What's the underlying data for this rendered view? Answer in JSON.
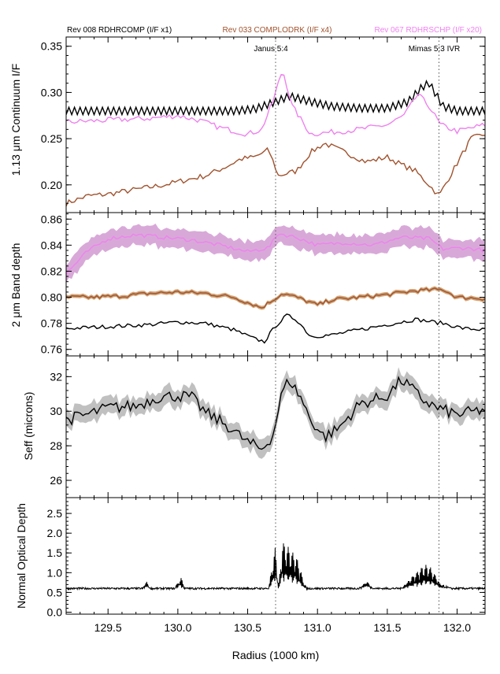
{
  "legend": [
    {
      "label": "Rev 008 RDHRCOMP (I/F x1)",
      "color": "#000000"
    },
    {
      "label": "Rev 033 COMPLODRK (I/F x4)",
      "color": "#a0522d"
    },
    {
      "label": "Rev 067 RDHRSCHP (I/F x20)",
      "color": "#ee82ee"
    }
  ],
  "resonances": [
    {
      "label": "Janus 5:4",
      "x": 130.7
    },
    {
      "label": "Mimas 5:3 IVR",
      "x": 131.87
    }
  ],
  "colors": {
    "band": "#c0c0c0",
    "brown_band": "#d2a679",
    "violet_band": "#d8a9d8",
    "dotted": "#555555"
  },
  "chart_data": [
    {
      "type": "line",
      "ylabel": "1.13 μm Continuum I/F",
      "xlim": [
        129.2,
        132.2
      ],
      "ylim": [
        0.17,
        0.36
      ],
      "yticks": [
        "0.20",
        "0.25",
        "0.30",
        "0.35"
      ],
      "series": [
        {
          "name": "Rev 008 RDHRCOMP (I/F x1)",
          "color": "#000000",
          "x": [
            129.2,
            129.4,
            129.6,
            129.8,
            130.0,
            130.2,
            130.4,
            130.55,
            130.7,
            130.8,
            130.95,
            131.1,
            131.3,
            131.5,
            131.65,
            131.75,
            131.8,
            131.9,
            132.0,
            132.2
          ],
          "y": [
            0.28,
            0.28,
            0.28,
            0.28,
            0.28,
            0.28,
            0.28,
            0.282,
            0.29,
            0.296,
            0.29,
            0.285,
            0.283,
            0.283,
            0.29,
            0.306,
            0.31,
            0.285,
            0.28,
            0.28
          ]
        },
        {
          "name": "Rev 033 COMPLODRK (I/F x4)",
          "color": "#a0522d",
          "x": [
            129.2,
            129.35,
            129.5,
            129.7,
            129.9,
            130.05,
            130.2,
            130.35,
            130.45,
            130.55,
            130.65,
            130.72,
            130.85,
            130.95,
            131.05,
            131.2,
            131.35,
            131.5,
            131.6,
            131.7,
            131.8,
            131.87,
            131.95,
            132.1,
            132.2
          ],
          "y": [
            0.18,
            0.188,
            0.19,
            0.195,
            0.2,
            0.205,
            0.21,
            0.22,
            0.228,
            0.23,
            0.238,
            0.21,
            0.215,
            0.235,
            0.245,
            0.235,
            0.225,
            0.23,
            0.222,
            0.215,
            0.2,
            0.188,
            0.21,
            0.25,
            0.255
          ]
        },
        {
          "name": "Rev 067 RDHRSCHP (I/F x20)",
          "color": "#ee82ee",
          "x": [
            129.2,
            129.5,
            129.8,
            130.0,
            130.15,
            130.3,
            130.5,
            130.6,
            130.68,
            130.75,
            130.82,
            130.95,
            131.1,
            131.3,
            131.5,
            131.62,
            131.72,
            131.8,
            131.88,
            132.0,
            132.2
          ],
          "y": [
            0.268,
            0.27,
            0.272,
            0.275,
            0.27,
            0.262,
            0.255,
            0.26,
            0.29,
            0.325,
            0.285,
            0.255,
            0.257,
            0.26,
            0.265,
            0.275,
            0.298,
            0.285,
            0.265,
            0.258,
            0.265
          ]
        }
      ]
    },
    {
      "type": "line",
      "ylabel": "2 μm Band depth",
      "xlim": [
        129.2,
        132.2
      ],
      "ylim": [
        0.755,
        0.865
      ],
      "yticks": [
        "0.76",
        "0.78",
        "0.80",
        "0.82",
        "0.84",
        "0.86"
      ],
      "series": [
        {
          "name": "Rev 008 RDHRCOMP (I/F x1)",
          "color": "#000000",
          "x": [
            129.2,
            129.4,
            129.6,
            129.8,
            130.0,
            130.2,
            130.4,
            130.55,
            130.62,
            130.7,
            130.78,
            130.85,
            130.95,
            131.1,
            131.3,
            131.5,
            131.7,
            131.9,
            132.05,
            132.2
          ],
          "y": [
            0.776,
            0.777,
            0.778,
            0.779,
            0.781,
            0.78,
            0.775,
            0.768,
            0.766,
            0.778,
            0.786,
            0.783,
            0.77,
            0.771,
            0.775,
            0.779,
            0.783,
            0.78,
            0.776,
            0.775
          ]
        },
        {
          "name": "Rev 033 COMPLODRK (I/F x4)",
          "color": "#a0522d",
          "x": [
            129.2,
            129.4,
            129.6,
            129.8,
            130.0,
            130.2,
            130.4,
            130.6,
            130.75,
            130.85,
            131.0,
            131.1,
            131.3,
            131.5,
            131.7,
            131.9,
            132.0,
            132.2
          ],
          "y": [
            0.8,
            0.8,
            0.801,
            0.803,
            0.804,
            0.803,
            0.8,
            0.792,
            0.803,
            0.8,
            0.794,
            0.798,
            0.8,
            0.802,
            0.805,
            0.806,
            0.8,
            0.799
          ]
        },
        {
          "name": "Rev 067 RDHRSCHP (I/F x20)",
          "color": "#ee82ee",
          "x": [
            129.2,
            129.35,
            129.5,
            129.7,
            129.9,
            130.1,
            130.3,
            130.5,
            130.65,
            130.72,
            130.85,
            131.0,
            131.2,
            131.4,
            131.6,
            131.8,
            131.9,
            132.05,
            132.2
          ],
          "y": [
            0.818,
            0.835,
            0.845,
            0.848,
            0.846,
            0.844,
            0.84,
            0.835,
            0.838,
            0.849,
            0.846,
            0.84,
            0.842,
            0.84,
            0.846,
            0.845,
            0.837,
            0.838,
            0.836
          ],
          "spread": 0.008
        }
      ]
    },
    {
      "type": "line",
      "ylabel": "Seff (microns)",
      "xlim": [
        129.2,
        132.2
      ],
      "ylim": [
        25.0,
        33.2
      ],
      "yticks": [
        "26",
        "28",
        "30",
        "32"
      ],
      "series": [
        {
          "color": "#000000",
          "x": [
            129.2,
            129.35,
            129.5,
            129.7,
            129.85,
            130.0,
            130.1,
            130.2,
            130.35,
            130.5,
            130.6,
            130.68,
            130.75,
            130.8,
            130.88,
            130.95,
            131.05,
            131.15,
            131.3,
            131.5,
            131.6,
            131.65,
            131.75,
            131.85,
            132.0,
            132.2
          ],
          "y": [
            29.5,
            29.8,
            30.2,
            30.3,
            30.8,
            30.9,
            30.8,
            29.9,
            29.2,
            28.2,
            27.8,
            28.6,
            31.2,
            31.8,
            30.8,
            29.5,
            28.5,
            29.0,
            30.4,
            30.9,
            31.8,
            31.5,
            30.7,
            30.2,
            29.8,
            30.1
          ],
          "spread": 0.55
        }
      ]
    },
    {
      "type": "line",
      "ylabel": "Normal Optical Depth",
      "xlabel": "Radius (1000 km)",
      "xlim": [
        129.2,
        132.2
      ],
      "ylim": [
        -0.05,
        2.9
      ],
      "yticks": [
        "0.0",
        "0.5",
        "1.0",
        "1.5",
        "2.0",
        "2.5"
      ],
      "xticks": [
        "129.5",
        "130.0",
        "130.5",
        "131.0",
        "131.5",
        "132.0"
      ],
      "series": [
        {
          "color": "#000000",
          "x": [
            129.2,
            129.75,
            129.78,
            129.8,
            129.98,
            130.02,
            130.05,
            130.65,
            130.7,
            130.72,
            130.75,
            130.8,
            130.85,
            130.9,
            130.92,
            131.3,
            131.35,
            131.4,
            131.6,
            131.65,
            131.72,
            131.78,
            131.82,
            131.88,
            131.95,
            132.2
          ],
          "y": [
            0.6,
            0.6,
            0.8,
            0.6,
            0.6,
            0.9,
            0.6,
            0.6,
            1.7,
            0.6,
            1.8,
            1.6,
            1.4,
            0.8,
            0.6,
            0.6,
            0.8,
            0.6,
            0.6,
            0.8,
            1.05,
            1.2,
            1.1,
            0.7,
            0.6,
            0.6
          ],
          "noise": 0.05
        }
      ]
    }
  ]
}
